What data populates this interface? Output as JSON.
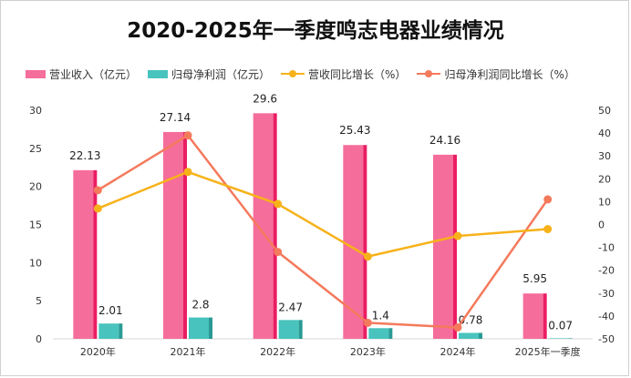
{
  "colors": {
    "revenue_bar": "#f56d9a",
    "revenue_bar_side": "#ea1d63",
    "profit_bar": "#49c3bd",
    "profit_bar_side": "#2a9a95",
    "revenue_growth_line": "#f7b21a",
    "profit_growth_line": "#f47a5c"
  },
  "chart_data": {
    "type": "bar",
    "title": "2020-2025年一季度鸣志电器业绩情况",
    "categories": [
      "2020年",
      "2021年",
      "2022年",
      "2023年",
      "2024年",
      "2025年一季度"
    ],
    "legend": [
      "营业收入（亿元）",
      "归母净利润（亿元）",
      "营收同比增长（%）",
      "归母净利润同比增长（%）"
    ],
    "legend_position": "top",
    "grid": false,
    "left_axis": {
      "ylim": [
        0,
        30
      ],
      "ticks": [
        "0",
        "5",
        "10",
        "15",
        "20",
        "25",
        "30"
      ]
    },
    "right_axis": {
      "ylim": [
        -50,
        50
      ],
      "ticks": [
        "50",
        "40",
        "30",
        "20",
        "10",
        "0",
        "-10",
        "-20",
        "-30",
        "-40",
        "-50"
      ]
    },
    "series": [
      {
        "name": "营业收入（亿元）",
        "kind": "bar",
        "axis": "left",
        "values": [
          22.13,
          27.14,
          29.6,
          25.43,
          24.16,
          5.95
        ],
        "labels": [
          "22.13",
          "27.14",
          "29.6",
          "25.43",
          "24.16",
          "5.95"
        ]
      },
      {
        "name": "归母净利润（亿元）",
        "kind": "bar",
        "axis": "left",
        "values": [
          2.01,
          2.8,
          2.47,
          1.4,
          0.78,
          0.07
        ],
        "labels": [
          "2.01",
          "2.8",
          "2.47",
          "1.4",
          "0.78",
          "0.07"
        ]
      },
      {
        "name": "营收同比增长（%）",
        "kind": "line",
        "axis": "right",
        "values": [
          7,
          23,
          9,
          -14,
          -5,
          -2
        ]
      },
      {
        "name": "归母净利润同比增长（%）",
        "kind": "line",
        "axis": "right",
        "values": [
          15,
          39,
          -12,
          -43,
          -45,
          11
        ]
      }
    ]
  }
}
